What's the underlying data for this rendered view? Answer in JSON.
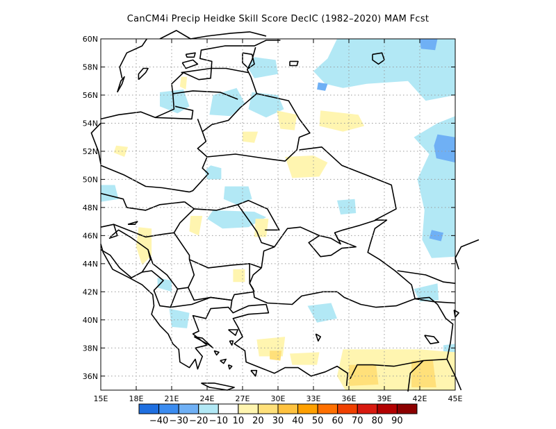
{
  "map": {
    "title": "CanCM4i Precip Heidke Skill Score DecIC (1982–2020) MAM Fcst",
    "lat_labels": [
      "60N",
      "58N",
      "56N",
      "54N",
      "52N",
      "50N",
      "48N",
      "46N",
      "44N",
      "42N",
      "40N",
      "38N",
      "36N"
    ],
    "lat_values": [
      60,
      58,
      56,
      54,
      52,
      50,
      48,
      46,
      44,
      42,
      40,
      38,
      36
    ],
    "lon_labels": [
      "15E",
      "18E",
      "21E",
      "24E",
      "27E",
      "30E",
      "33E",
      "36E",
      "39E",
      "42E",
      "45E"
    ],
    "lon_values": [
      15,
      18,
      21,
      24,
      27,
      30,
      33,
      36,
      39,
      42,
      45
    ],
    "extent": {
      "lon_min": 15,
      "lon_max": 45,
      "lat_min": 35,
      "lat_max": 60
    },
    "grid": "dotted"
  },
  "colorbar": {
    "labels": [
      "−40",
      "−30",
      "−20",
      "−10",
      "10",
      "20",
      "30",
      "40",
      "50",
      "60",
      "70",
      "80",
      "90"
    ],
    "colors": [
      "#1f6fe0",
      "#3b8cf0",
      "#6fb0f5",
      "#b2e8f5",
      "#ffffff",
      "#fff5b0",
      "#ffe07a",
      "#ffc23f",
      "#ffa000",
      "#ff7000",
      "#f04000",
      "#d81a10",
      "#b20000",
      "#8c0000"
    ]
  }
}
